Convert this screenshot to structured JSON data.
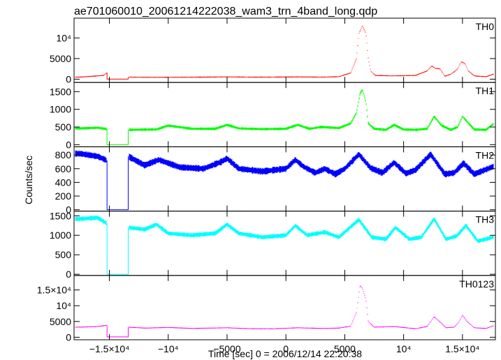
{
  "title": "ae701060010_20061214222038_wam3_trn_4band_long.qdp",
  "chart_data": {
    "type": "line",
    "title": "ae701060010_20061214222038_wam3_trn_4band_long.qdp",
    "xlabel": "Time [sec] 0 = 2006/12/14 22:20:38",
    "ylabel": "Counts/sec",
    "xlim": [
      -18000,
      17800
    ],
    "x_ticks": [
      -15000,
      -10000,
      -5000,
      0,
      5000,
      10000,
      15000
    ],
    "x_tick_labels": [
      "−1.5×10⁴",
      "−10⁴",
      "−5000",
      "0",
      "5000",
      "10⁴",
      "1.5×10⁴"
    ],
    "grid": false,
    "gap": [
      -15200,
      -13400
    ],
    "panels": [
      {
        "label": "TH0",
        "color": "#ff0000",
        "ylim": [
          -800,
          14800
        ],
        "y_ticks": [
          0,
          5000,
          10000
        ],
        "y_tick_labels": [
          "0",
          "5000",
          "10⁴"
        ],
        "gap_value": 20,
        "noise": 120,
        "x": [
          -17500,
          -16500,
          -15500,
          -15200,
          -13400,
          -12000,
          -10000,
          -7000,
          -5000,
          -3000,
          -1000,
          1000,
          3000,
          4500,
          5500,
          6000,
          6200,
          6500,
          6800,
          7000,
          7200,
          7600,
          9000,
          11000,
          12000,
          12400,
          12700,
          13100,
          13500,
          14000,
          14300,
          14600,
          14900,
          15200,
          15500,
          16000,
          17000,
          17600
        ],
        "y": [
          500,
          700,
          900,
          1600,
          500,
          450,
          450,
          500,
          550,
          500,
          500,
          550,
          500,
          600,
          1500,
          5000,
          11000,
          13000,
          11000,
          5000,
          2000,
          900,
          800,
          900,
          2000,
          3200,
          2600,
          2500,
          700,
          1200,
          1800,
          2500,
          4200,
          3800,
          2000,
          800,
          600,
          1200
        ]
      },
      {
        "label": "TH1",
        "color": "#00ff00",
        "ylim": [
          -60,
          1760
        ],
        "y_ticks": [
          0,
          500,
          1000,
          1500
        ],
        "y_tick_labels": [
          "0",
          "500",
          "1000",
          "1500"
        ],
        "gap_value": 0,
        "noise": 40,
        "x": [
          -17500,
          -16000,
          -15200,
          -13400,
          -11000,
          -10000,
          -8000,
          -6000,
          -5000,
          -4000,
          -2000,
          0,
          1000,
          2000,
          3000,
          4500,
          5500,
          6000,
          6300,
          6500,
          6800,
          7000,
          7500,
          8500,
          9200,
          10000,
          11000,
          12000,
          12600,
          13200,
          14000,
          14600,
          15000,
          15400,
          16000,
          17000,
          17600
        ],
        "y": [
          460,
          480,
          440,
          420,
          430,
          540,
          450,
          450,
          560,
          460,
          440,
          450,
          560,
          450,
          500,
          470,
          600,
          900,
          1450,
          1550,
          1200,
          600,
          450,
          420,
          560,
          430,
          420,
          450,
          800,
          550,
          420,
          500,
          800,
          650,
          430,
          420,
          580
        ]
      },
      {
        "label": "TH2",
        "color": "#0000ff",
        "ylim": [
          -20,
          920
        ],
        "y_ticks": [
          0,
          200,
          400,
          600,
          800
        ],
        "y_tick_labels": [
          "0",
          "200",
          "400",
          "600",
          "800"
        ],
        "gap_value": 0,
        "noise": 50,
        "x": [
          -17500,
          -16000,
          -15200,
          -13400,
          -12000,
          -10800,
          -9000,
          -7000,
          -5500,
          -5000,
          -4000,
          -2000,
          0,
          800,
          1500,
          2500,
          3300,
          4200,
          5000,
          6200,
          7200,
          8200,
          9200,
          10200,
          11000,
          12300,
          13500,
          14300,
          15100,
          16000,
          17600
        ],
        "y": [
          820,
          780,
          720,
          780,
          650,
          730,
          620,
          600,
          700,
          750,
          600,
          560,
          600,
          730,
          630,
          540,
          600,
          520,
          600,
          810,
          610,
          540,
          690,
          530,
          580,
          810,
          520,
          540,
          680,
          520,
          630
        ]
      },
      {
        "label": "TH3",
        "color": "#00ffff",
        "ylim": [
          -30,
          1620
        ],
        "y_ticks": [
          0,
          500,
          1000,
          1500
        ],
        "y_tick_labels": [
          "0",
          "500",
          "1000",
          "1500"
        ],
        "gap_value": 0,
        "noise": 60,
        "x": [
          -17500,
          -16000,
          -15200,
          -13400,
          -12000,
          -11000,
          -10000,
          -8000,
          -6000,
          -5000,
          -4000,
          -2000,
          0,
          800,
          1800,
          3300,
          4500,
          6200,
          7300,
          8500,
          9300,
          10500,
          11500,
          12600,
          13600,
          14500,
          15300,
          16300,
          17600
        ],
        "y": [
          1420,
          1450,
          1300,
          1200,
          1150,
          1280,
          1050,
          1000,
          1050,
          1280,
          1050,
          950,
          1000,
          1250,
          1000,
          1080,
          950,
          1400,
          950,
          900,
          1200,
          900,
          950,
          1420,
          900,
          980,
          1250,
          850,
          950
        ]
      },
      {
        "label": "TH0123",
        "color": "#ff00ff",
        "ylim": [
          -800,
          19600
        ],
        "y_ticks": [
          0,
          5000,
          10000,
          15000
        ],
        "y_tick_labels": [
          "0",
          "5000",
          "10⁴",
          "1.5×10⁴"
        ],
        "gap_value": 100,
        "noise": 150,
        "x": [
          -17500,
          -16000,
          -15200,
          -13400,
          -12000,
          -10000,
          -8000,
          -5000,
          -3000,
          -1000,
          1000,
          3000,
          4500,
          5500,
          6000,
          6300,
          6500,
          6800,
          7000,
          7500,
          9200,
          11000,
          12000,
          12600,
          13200,
          13600,
          14300,
          14700,
          15000,
          15400,
          16000,
          17000,
          17600
        ],
        "y": [
          3200,
          3400,
          3800,
          3200,
          2900,
          3100,
          2800,
          3000,
          2700,
          2700,
          3000,
          2800,
          2900,
          3500,
          8000,
          16500,
          15500,
          12000,
          5000,
          3200,
          3400,
          2700,
          3400,
          6500,
          4500,
          3000,
          3200,
          4800,
          7000,
          5000,
          3000,
          2800,
          3600
        ]
      }
    ]
  }
}
